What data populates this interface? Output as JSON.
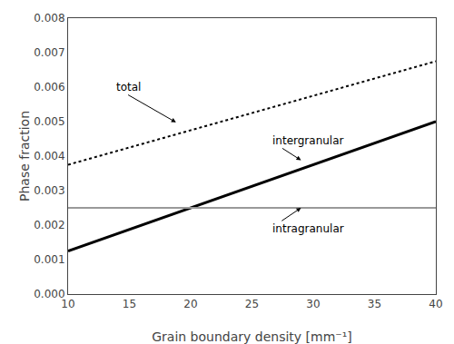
{
  "chart_data": {
    "type": "line",
    "xlabel": "Grain boundary density [mm⁻¹]",
    "ylabel": "Phase fraction",
    "x": [
      10,
      40
    ],
    "series": [
      {
        "values": [
          0.00125,
          0.005
        ],
        "color": "#000000",
        "line_style": "solid"
      },
      {
        "values": [
          0.00375,
          0.00675
        ],
        "color": "#000000",
        "line_style": "dotted"
      },
      {
        "values": [
          0.0025,
          0.0025
        ],
        "color": "#999999",
        "line_style": "solid"
      }
    ],
    "annotations": [
      {
        "text": "total",
        "x": 18.8,
        "y": 0.00498,
        "text_x": 13.8,
        "text_y": 0.006
      },
      {
        "text": "intergranular",
        "x": 29.0,
        "y": 0.00388,
        "text_x": 26.5,
        "text_y": 0.00445
      },
      {
        "text": "intragranular",
        "x": 29.0,
        "y": 0.0025,
        "text_x": 26.5,
        "text_y": 0.0019
      }
    ],
    "xlim": [
      10,
      40
    ],
    "ylim": [
      0.0,
      0.008
    ],
    "xticks": [
      10,
      15,
      20,
      25,
      30,
      35,
      40
    ],
    "yticks": [
      {
        "value": 0.0,
        "label": "0.000"
      },
      0.001,
      0.002,
      0.003,
      0.004,
      0.005,
      0.006,
      0.007,
      0.008
    ],
    "grid": false
  }
}
